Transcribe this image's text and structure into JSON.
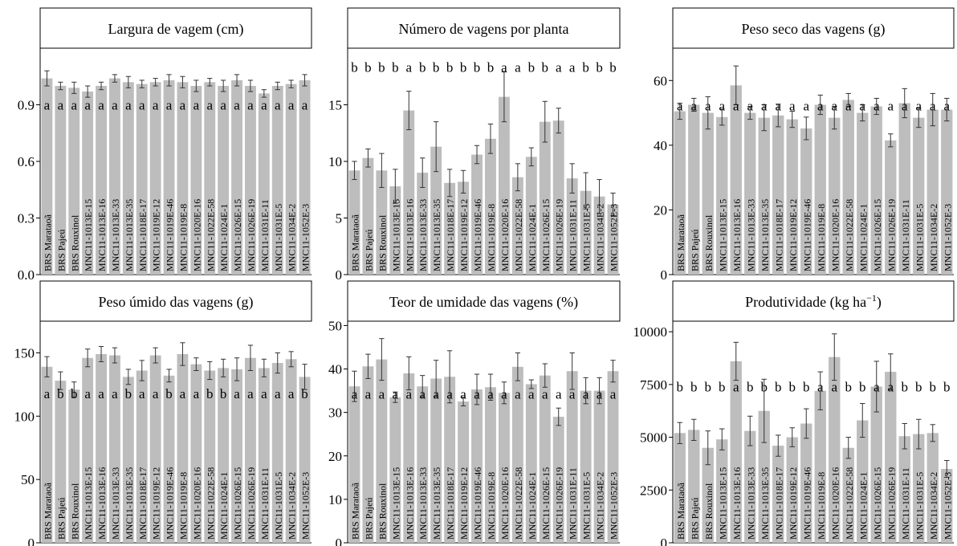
{
  "categories": [
    "BRS Marataoã",
    "BRS Pajeú",
    "BRS Rouxinol",
    "MNC11-1013E-15",
    "MNC11-1013E-16",
    "MNC11-1013E-33",
    "MNC11-1013E-35",
    "MNC11-1018E-17",
    "MNC11-1019E-12",
    "MNC11-1019E-46",
    "MNC11-1019E-8",
    "MNC11-1020E-16",
    "MNC11-1022E-58",
    "MNC11-1024E-1",
    "MNC11-1026E-15",
    "MNC11-1026E-19",
    "MNC11-1031E-11",
    "MNC11-1031E-5",
    "MNC11-1034E-2",
    "MNC11-1052E-3"
  ],
  "colors": {
    "bar": "#bdbdbd",
    "axis": "#000000",
    "text": "#000000"
  },
  "chart_data": [
    {
      "type": "bar",
      "title": "Largura de vagem (cm)",
      "ylim": [
        0,
        1.2
      ],
      "yticks": [
        "0.0",
        "0.3",
        "0.6",
        "0.9"
      ],
      "values": [
        1.04,
        1.0,
        0.99,
        0.97,
        1.0,
        1.04,
        1.02,
        1.01,
        1.02,
        1.03,
        1.02,
        1.0,
        1.02,
        1.0,
        1.03,
        1.0,
        0.96,
        1.0,
        1.01,
        1.03
      ],
      "errors": [
        0.04,
        0.02,
        0.03,
        0.03,
        0.02,
        0.02,
        0.03,
        0.02,
        0.02,
        0.03,
        0.03,
        0.03,
        0.02,
        0.03,
        0.03,
        0.03,
        0.02,
        0.02,
        0.02,
        0.03
      ],
      "letters": [
        "a",
        "a",
        "a",
        "a",
        "a",
        "a",
        "a",
        "a",
        "a",
        "a",
        "a",
        "a",
        "a",
        "a",
        "a",
        "a",
        "a",
        "a",
        "a",
        "a"
      ]
    },
    {
      "type": "bar",
      "title": "Número de vagens por planta",
      "ylim": [
        0,
        20
      ],
      "yticks": [
        "0",
        "5",
        "10",
        "15"
      ],
      "values": [
        9.2,
        10.3,
        9.2,
        7.8,
        14.5,
        9.0,
        11.3,
        8.1,
        8.2,
        10.6,
        12.0,
        15.7,
        8.6,
        10.4,
        13.5,
        13.6,
        8.5,
        7.4,
        6.9,
        6.2
      ],
      "errors": [
        0.8,
        0.8,
        1.5,
        1.5,
        1.7,
        1.3,
        2.2,
        1.2,
        1.0,
        0.8,
        1.3,
        2.2,
        1.2,
        0.8,
        1.8,
        1.1,
        1.3,
        1.6,
        1.5,
        1.0
      ],
      "letters": [
        "b",
        "b",
        "b",
        "b",
        "a",
        "b",
        "b",
        "b",
        "b",
        "b",
        "b",
        "a",
        "a",
        "b",
        "b",
        "a",
        "a",
        "b",
        "b",
        "b"
      ]
    },
    {
      "type": "bar",
      "title": "Peso seco das vagens (g)",
      "ylim": [
        0,
        70
      ],
      "yticks": [
        "0",
        "20",
        "40",
        "60"
      ],
      "values": [
        50.5,
        52.5,
        50.0,
        48.7,
        58.5,
        50.0,
        48.5,
        49.2,
        48.0,
        45.2,
        52.5,
        48.5,
        54.0,
        50.0,
        52.0,
        41.5,
        53.0,
        48.5,
        51.0,
        51.0
      ],
      "errors": [
        2.5,
        2.0,
        5.0,
        2.5,
        6.0,
        2.0,
        4.0,
        3.5,
        2.5,
        3.5,
        3.0,
        3.5,
        2.0,
        2.5,
        2.5,
        2.0,
        4.5,
        3.0,
        5.0,
        3.5
      ],
      "letters": [
        "a",
        "a",
        "a",
        "a",
        "a",
        "a",
        "a",
        "a",
        "a",
        "a",
        "a",
        "a",
        "a",
        "a",
        "a",
        "a",
        "a",
        "a",
        "a",
        "a"
      ]
    },
    {
      "type": "bar",
      "title": "Peso úmido das vagens (g)",
      "ylim": [
        0,
        175
      ],
      "yticks": [
        "0",
        "50",
        "100",
        "150"
      ],
      "values": [
        139,
        128,
        121,
        146,
        149,
        148,
        131,
        136,
        148,
        132,
        149,
        141,
        136,
        138,
        137,
        146,
        138,
        142,
        145,
        131
      ],
      "errors": [
        8,
        7,
        6,
        7,
        6,
        6,
        6,
        8,
        6,
        5,
        9,
        5,
        7,
        7,
        9,
        10,
        7,
        8,
        6,
        10
      ],
      "letters": [
        "a",
        "b",
        "b",
        "a",
        "a",
        "a",
        "b",
        "a",
        "a",
        "b",
        "a",
        "a",
        "b",
        "b",
        "a",
        "a",
        "a",
        "a",
        "a",
        "b"
      ]
    },
    {
      "type": "bar",
      "title": "Teor de umidade das vagens (%)",
      "ylim": [
        0,
        51
      ],
      "yticks": [
        "0",
        "10",
        "20",
        "30",
        "40",
        "50"
      ],
      "values": [
        36,
        40.6,
        42.2,
        33.5,
        39,
        36,
        37.8,
        38.2,
        32.5,
        35.3,
        35.8,
        34.5,
        40.5,
        36.5,
        38.5,
        29,
        39.5,
        35,
        35,
        39.5
      ],
      "errors": [
        3.5,
        2.8,
        4.8,
        1.2,
        3.8,
        2.5,
        4.2,
        6.0,
        1.0,
        3.5,
        3.0,
        2.5,
        3.2,
        1.0,
        2.7,
        2.0,
        4.2,
        3.0,
        3.0,
        2.5
      ],
      "letters": [
        "a",
        "a",
        "a",
        "a",
        "a",
        "a",
        "a",
        "a",
        "a",
        "a",
        "a",
        "a",
        "a",
        "a",
        "a",
        "a",
        "a",
        "a",
        "a",
        "a"
      ]
    },
    {
      "type": "bar",
      "title": "Produtividade (kg  ha",
      "title_superscript": "−1",
      "title_close": ")",
      "ylim": [
        0,
        10500
      ],
      "yticks": [
        "0",
        "2500",
        "5000",
        "7500",
        "10000"
      ],
      "values": [
        5200,
        5350,
        4500,
        4900,
        8600,
        5300,
        6250,
        4600,
        5000,
        5650,
        7200,
        8800,
        4500,
        5800,
        7400,
        8100,
        5050,
        5150,
        5200,
        3500
      ],
      "errors": [
        500,
        500,
        800,
        500,
        900,
        700,
        1500,
        500,
        450,
        700,
        900,
        1100,
        500,
        800,
        1200,
        850,
        600,
        700,
        400,
        400
      ],
      "letters": [
        "b",
        "b",
        "b",
        "b",
        "a",
        "b",
        "b",
        "b",
        "b",
        "b",
        "a",
        "a",
        "b",
        "b",
        "a",
        "a",
        "b",
        "b",
        "b",
        "b"
      ]
    }
  ]
}
